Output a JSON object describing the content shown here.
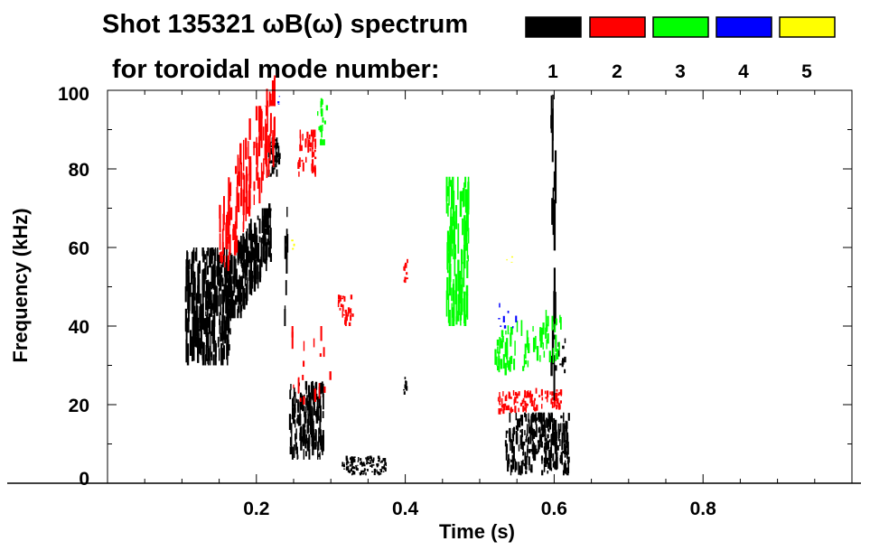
{
  "chart_data": {
    "type": "heatmap",
    "title": "Shot 135321 ωB(ω) spectrum",
    "subtitle": "for toroidal mode number:",
    "xlabel": "Time (s)",
    "ylabel": "Frequency (kHz)",
    "xlim": [
      0.0,
      1.0
    ],
    "ylim": [
      0,
      100
    ],
    "xticks": [
      0.2,
      0.4,
      0.6,
      0.8
    ],
    "xtick_labels": [
      "0.2",
      "0.4",
      "0.6",
      "0.8"
    ],
    "yticks": [
      0,
      20,
      40,
      60,
      80,
      100
    ],
    "ytick_labels": [
      "0",
      "20",
      "40",
      "60",
      "80",
      "100"
    ],
    "x_minor_step": 0.05,
    "y_minor_step": 10,
    "grid": false,
    "legend": {
      "placement": "top-right",
      "entries": [
        {
          "label": "1",
          "color": "#000000"
        },
        {
          "label": "2",
          "color": "#ff0000"
        },
        {
          "label": "3",
          "color": "#00ff00"
        },
        {
          "label": "4",
          "color": "#0000ff"
        },
        {
          "label": "5",
          "color": "#ffff00"
        }
      ]
    },
    "regions": [
      {
        "mode": 1,
        "t": [
          0.105,
          0.165
        ],
        "f": [
          30,
          60
        ],
        "density": 90
      },
      {
        "mode": 1,
        "t": [
          0.16,
          0.22
        ],
        "f": [
          42,
          70
        ],
        "density": 70,
        "slope": 0.35
      },
      {
        "mode": 1,
        "t": [
          0.215,
          0.232
        ],
        "f": [
          78,
          88
        ],
        "density": 14
      },
      {
        "mode": 1,
        "t": [
          0.238,
          0.242
        ],
        "f": [
          40,
          75
        ],
        "density": 3
      },
      {
        "mode": 1,
        "t": [
          0.245,
          0.29
        ],
        "f": [
          6,
          26
        ],
        "density": 55
      },
      {
        "mode": 1,
        "t": [
          0.315,
          0.375
        ],
        "f": [
          2,
          7
        ],
        "density": 40
      },
      {
        "mode": 1,
        "t": [
          0.398,
          0.402
        ],
        "f": [
          22,
          28
        ],
        "density": 3
      },
      {
        "mode": 1,
        "t": [
          0.535,
          0.62
        ],
        "f": [
          2,
          18
        ],
        "density": 85
      },
      {
        "mode": 1,
        "t": [
          0.596,
          0.602
        ],
        "f": [
          20,
          100
        ],
        "density": 6
      },
      {
        "mode": 1,
        "t": [
          0.6,
          0.615
        ],
        "f": [
          28,
          38
        ],
        "density": 5
      },
      {
        "mode": 2,
        "t": [
          0.15,
          0.225
        ],
        "f": [
          58,
          96
        ],
        "density": 45,
        "slope": 0.5
      },
      {
        "mode": 2,
        "t": [
          0.255,
          0.28
        ],
        "f": [
          78,
          90
        ],
        "density": 14
      },
      {
        "mode": 2,
        "t": [
          0.31,
          0.33
        ],
        "f": [
          40,
          48
        ],
        "density": 10
      },
      {
        "mode": 2,
        "t": [
          0.398,
          0.403
        ],
        "f": [
          50,
          58
        ],
        "density": 3
      },
      {
        "mode": 2,
        "t": [
          0.525,
          0.61
        ],
        "f": [
          17,
          25
        ],
        "density": 35,
        "slope": 0.08
      },
      {
        "mode": 2,
        "t": [
          0.24,
          0.3
        ],
        "f": [
          20,
          40
        ],
        "density": 6
      },
      {
        "mode": 3,
        "t": [
          0.455,
          0.485
        ],
        "f": [
          40,
          78
        ],
        "density": 35
      },
      {
        "mode": 3,
        "t": [
          0.28,
          0.295
        ],
        "f": [
          86,
          98
        ],
        "density": 6
      },
      {
        "mode": 3,
        "t": [
          0.52,
          0.61
        ],
        "f": [
          25,
          45
        ],
        "density": 25,
        "slope": 0.15
      },
      {
        "mode": 4,
        "t": [
          0.525,
          0.55
        ],
        "f": [
          38,
          46
        ],
        "density": 3
      },
      {
        "mode": 4,
        "t": [
          0.228,
          0.232
        ],
        "f": [
          96,
          99
        ],
        "density": 1
      },
      {
        "mode": 5,
        "t": [
          0.248,
          0.252
        ],
        "f": [
          58,
          62
        ],
        "density": 1
      },
      {
        "mode": 5,
        "t": [
          0.535,
          0.545
        ],
        "f": [
          55,
          58
        ],
        "density": 1
      }
    ]
  }
}
